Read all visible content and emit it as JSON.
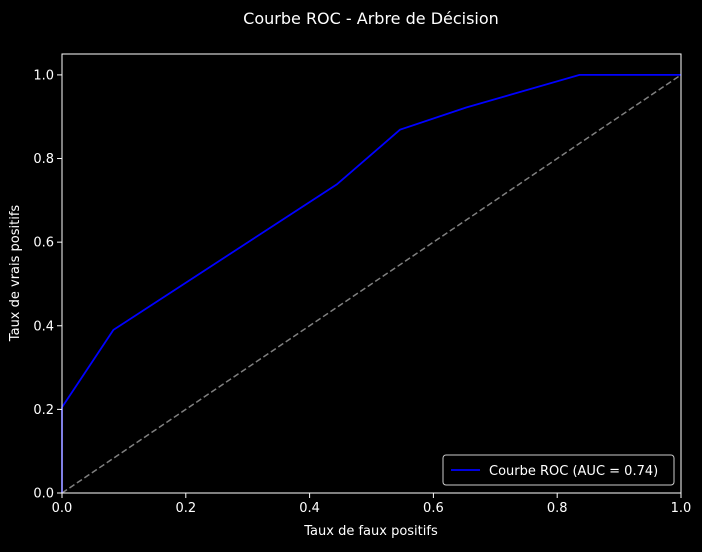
{
  "colors": {
    "background": "#000000",
    "axes": "#ffffff",
    "text": "#ffffff",
    "roc_line": "#0000ff",
    "diagonal": "#808080",
    "legend_border": "#cccccc"
  },
  "chart_data": {
    "type": "line",
    "title": "Courbe ROC - Arbre de Décision",
    "xlabel": "Taux de faux positifs",
    "ylabel": "Taux de vrais positifs",
    "xlim": [
      0.0,
      1.0
    ],
    "ylim": [
      0.0,
      1.05
    ],
    "xticks": [
      0.0,
      0.2,
      0.4,
      0.6,
      0.8,
      1.0
    ],
    "xtick_labels": [
      "0.0",
      "0.2",
      "0.4",
      "0.6",
      "0.8",
      "1.0"
    ],
    "yticks": [
      0.0,
      0.2,
      0.4,
      0.6,
      0.8,
      1.0
    ],
    "ytick_labels": [
      "0.0",
      "0.2",
      "0.4",
      "0.6",
      "0.8",
      "1.0"
    ],
    "grid": false,
    "legend_position": "lower-right",
    "series": [
      {
        "name": "Courbe ROC (AUC = 0.74)",
        "style": "solid",
        "color": "#0000ff",
        "x": [
          0.0,
          0.0,
          0.083,
          0.444,
          0.546,
          0.653,
          0.836,
          1.0
        ],
        "y": [
          0.0,
          0.205,
          0.39,
          0.738,
          0.869,
          0.922,
          1.0,
          1.0
        ]
      },
      {
        "style": "dashed",
        "color": "#808080",
        "x": [
          0.0,
          1.0
        ],
        "y": [
          0.0,
          1.0
        ]
      }
    ]
  }
}
